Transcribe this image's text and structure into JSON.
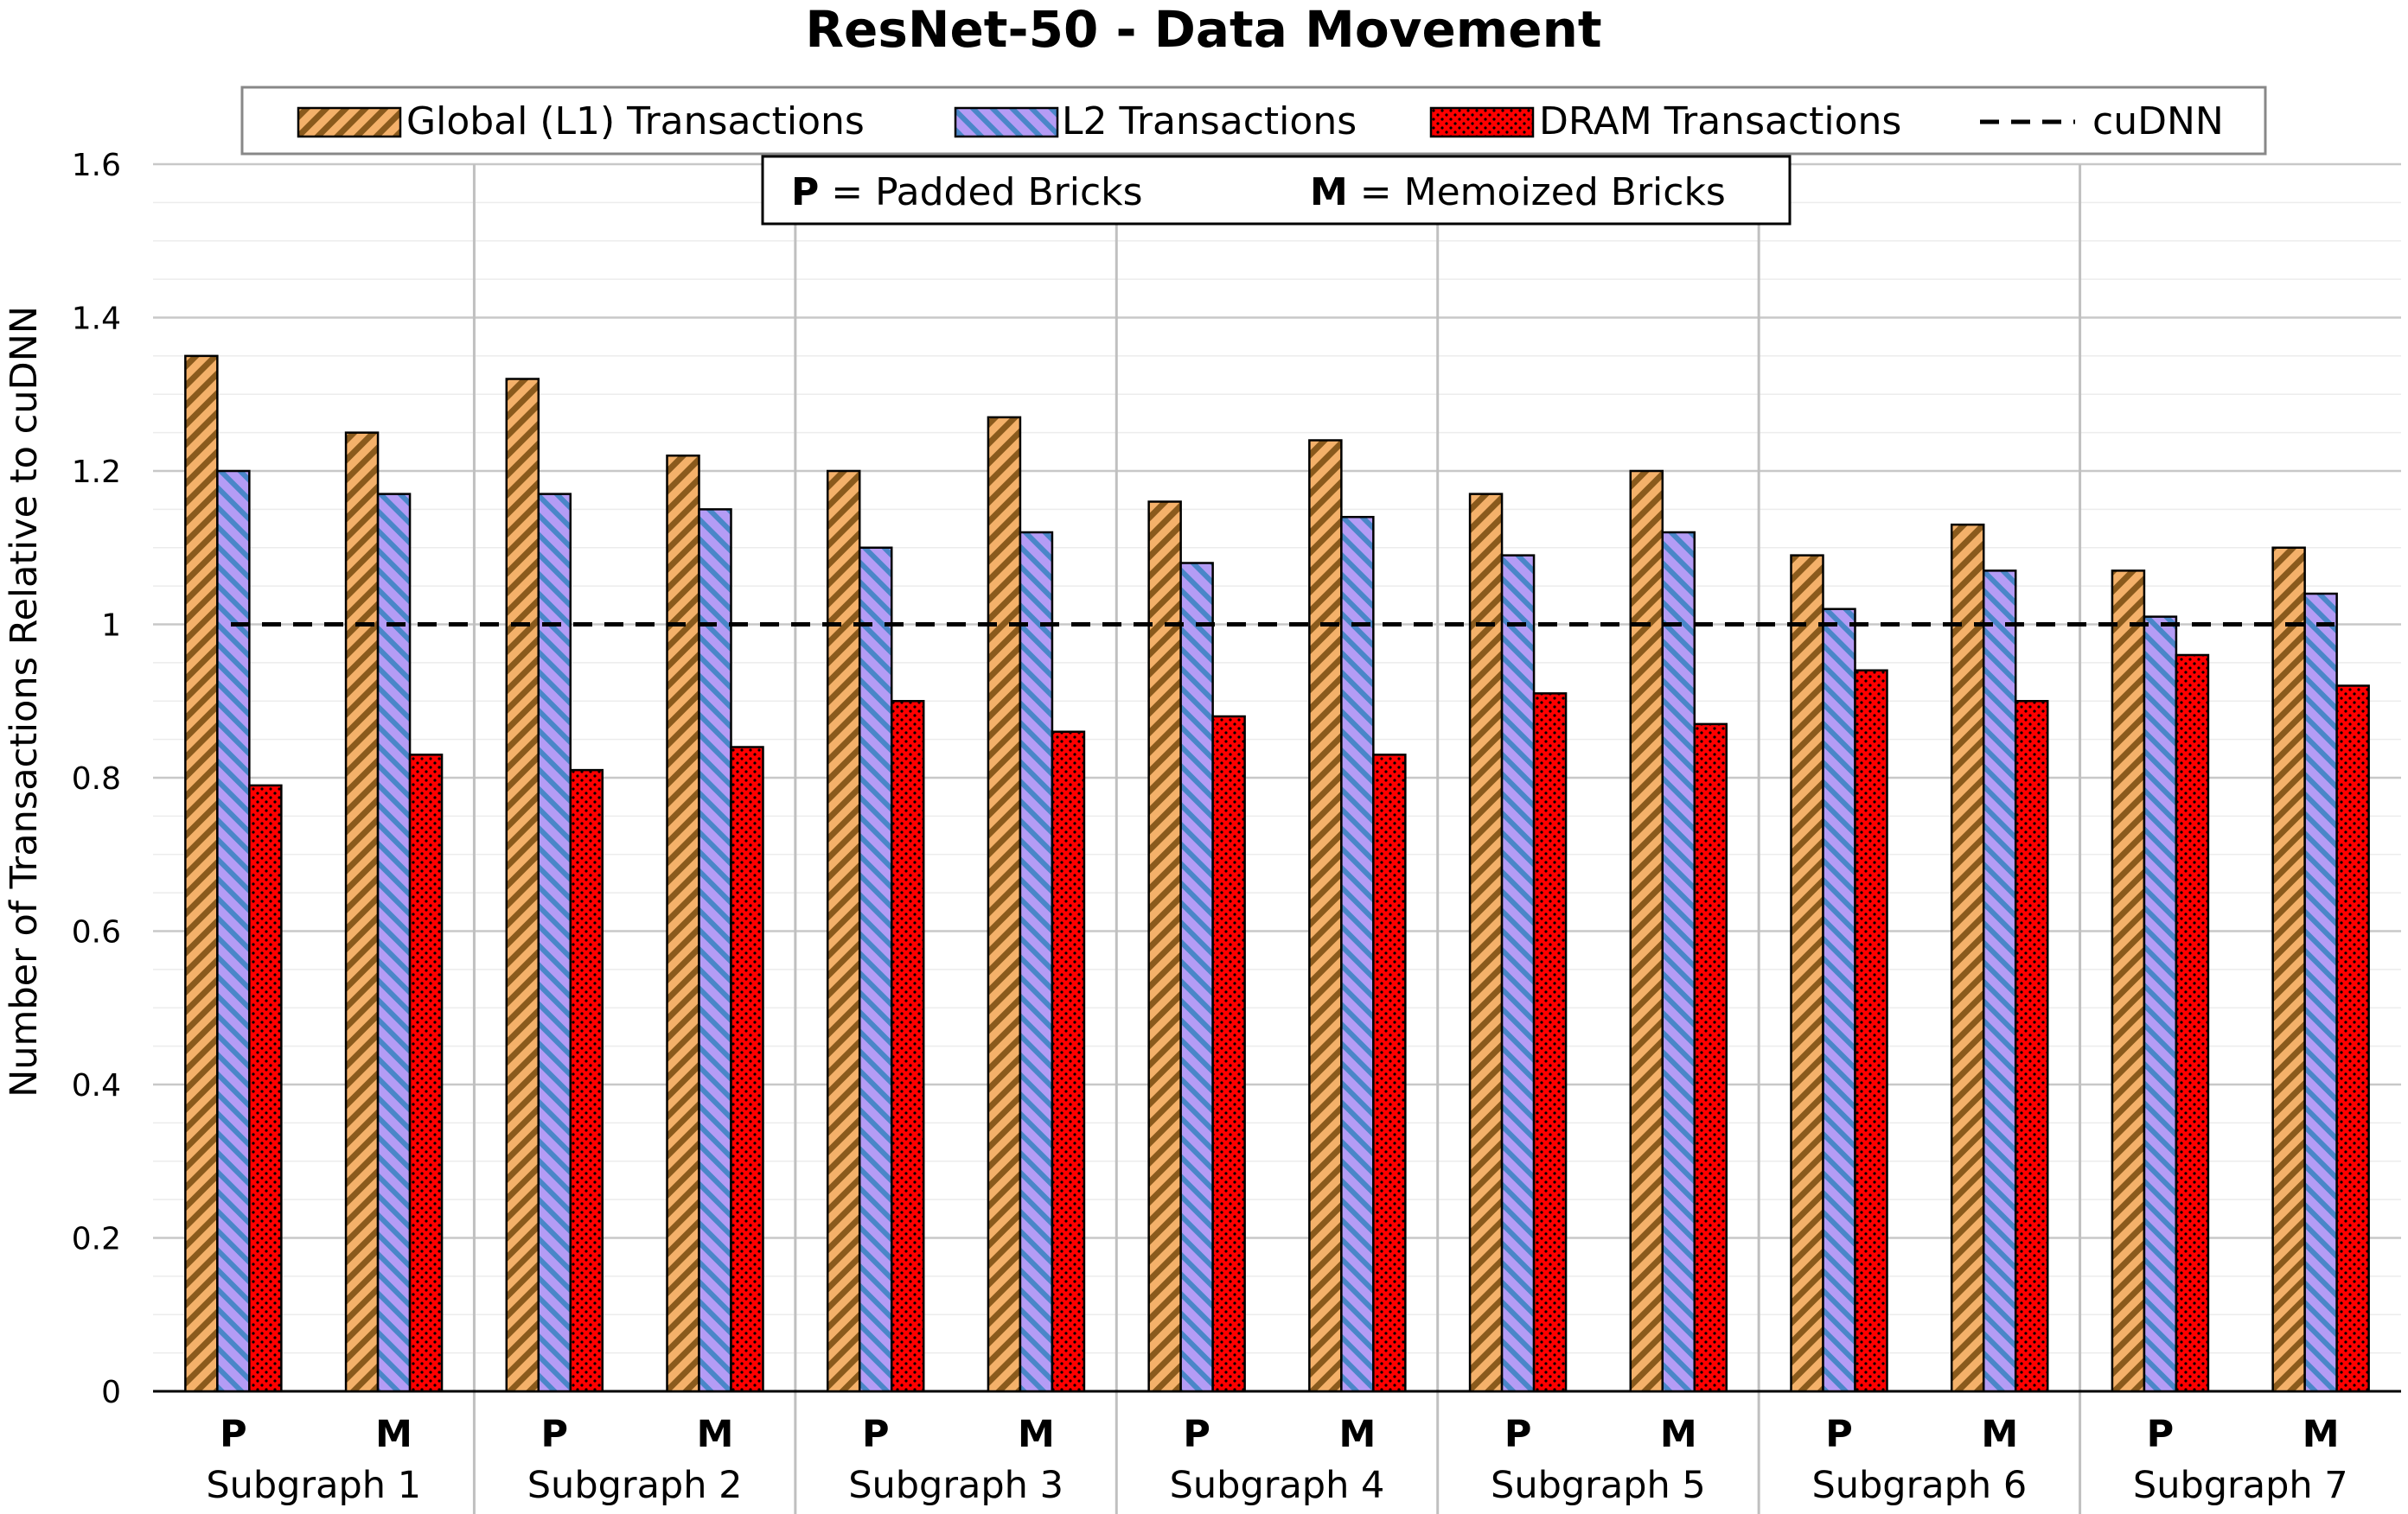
{
  "chart_data": {
    "type": "bar",
    "title": "ResNet-50 - Data Movement",
    "ylabel": "Number of Transactions Relative to cuDNN",
    "xlabel": "",
    "ylim": [
      0,
      1.6
    ],
    "yticks": [
      "0",
      "0.2",
      "0.4",
      "0.6",
      "0.8",
      "1",
      "1.2",
      "1.4",
      "1.6"
    ],
    "grid": true,
    "legend_position": "top",
    "groups": [
      "Subgraph 1",
      "Subgraph 2",
      "Subgraph 3",
      "Subgraph 4",
      "Subgraph 5",
      "Subgraph 6",
      "Subgraph 7"
    ],
    "sub_labels": [
      "P",
      "M"
    ],
    "sub_key": [
      {
        "abbr": "P",
        "text": " = Padded Bricks"
      },
      {
        "abbr": "M",
        "text": " = Memoized Bricks"
      }
    ],
    "series": [
      {
        "name": "Global (L1) Transactions",
        "color": "#f4b16a",
        "pattern": "diagonal-stripes-brown",
        "values": [
          1.35,
          1.25,
          1.32,
          1.22,
          1.2,
          1.27,
          1.16,
          1.24,
          1.17,
          1.2,
          1.09,
          1.13,
          1.07,
          1.1
        ]
      },
      {
        "name": "L2 Transactions",
        "color": "#b49cf5",
        "pattern": "diagonal-stripes-blue",
        "values": [
          1.2,
          1.17,
          1.17,
          1.15,
          1.1,
          1.12,
          1.08,
          1.14,
          1.09,
          1.12,
          1.02,
          1.07,
          1.01,
          1.04
        ]
      },
      {
        "name": "DRAM Transactions",
        "color": "#ff0000",
        "pattern": "dots-black",
        "values": [
          0.79,
          0.83,
          0.81,
          0.84,
          0.9,
          0.86,
          0.88,
          0.83,
          0.91,
          0.87,
          0.94,
          0.9,
          0.96,
          0.92
        ]
      }
    ],
    "reference_line": {
      "name": "cuDNN",
      "value": 1,
      "style": "dashed",
      "color": "#000000"
    }
  }
}
